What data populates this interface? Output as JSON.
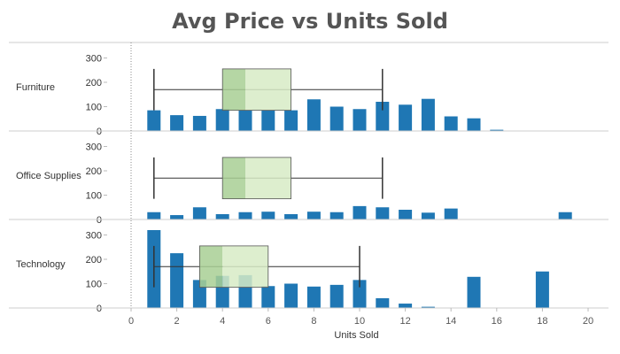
{
  "title": "Avg Price vs Units Sold",
  "chart_data": {
    "type": "bar",
    "title": "Avg Price vs Units Sold",
    "xlabel": "Units Sold",
    "ylabel": "",
    "xlim": [
      0,
      21
    ],
    "ylim": [
      0,
      320
    ],
    "x_ticks": [
      0,
      2,
      4,
      6,
      8,
      10,
      12,
      14,
      16,
      18,
      20
    ],
    "y_ticks": [
      0,
      100,
      200,
      300
    ],
    "grid": false,
    "colors": {
      "bar": "#1f77b4",
      "box_lower": "#a8cf94",
      "box_upper": "#d7ebc5",
      "whisker": "#333333"
    },
    "panels": [
      {
        "name": "Furniture",
        "x": [
          1,
          2,
          3,
          4,
          5,
          6,
          7,
          8,
          9,
          10,
          11,
          12,
          13,
          14,
          15,
          16
        ],
        "values": [
          85,
          65,
          62,
          90,
          85,
          85,
          85,
          130,
          100,
          90,
          120,
          108,
          132,
          60,
          52,
          5
        ],
        "boxplot": {
          "whisker_low": 1,
          "q1": 4,
          "median": 5,
          "q3": 7,
          "whisker_high": 11
        }
      },
      {
        "name": "Office Supplies",
        "x": [
          1,
          2,
          3,
          4,
          5,
          6,
          7,
          8,
          9,
          10,
          11,
          12,
          13,
          14,
          19
        ],
        "values": [
          30,
          18,
          50,
          22,
          30,
          32,
          22,
          32,
          30,
          55,
          50,
          40,
          28,
          45,
          30
        ],
        "boxplot": {
          "whisker_low": 1,
          "q1": 4,
          "median": 5,
          "q3": 7,
          "whisker_high": 11
        }
      },
      {
        "name": "Technology",
        "x": [
          1,
          2,
          3,
          4,
          5,
          6,
          7,
          8,
          9,
          10,
          11,
          12,
          13,
          15,
          18
        ],
        "values": [
          320,
          225,
          115,
          132,
          135,
          90,
          100,
          88,
          95,
          115,
          40,
          18,
          5,
          128,
          150
        ],
        "boxplot": {
          "whisker_low": 1,
          "q1": 3,
          "median": 4,
          "q3": 6,
          "whisker_high": 10
        }
      }
    ]
  }
}
